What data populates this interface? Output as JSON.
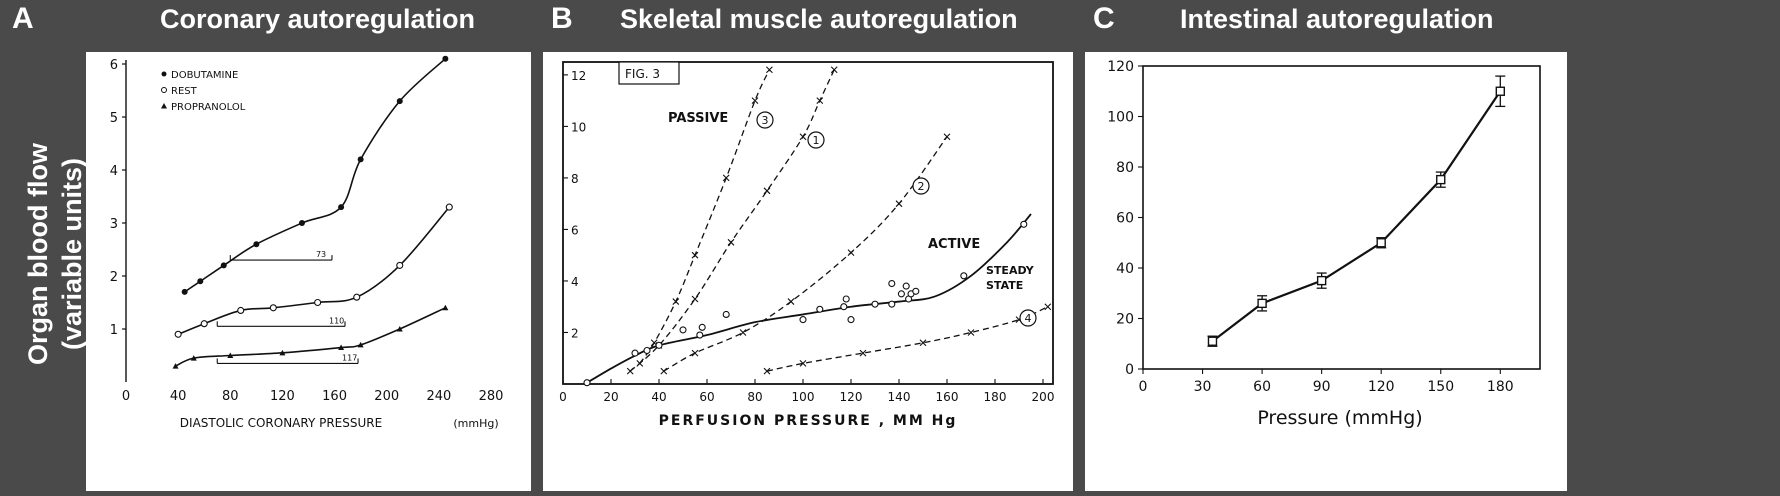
{
  "figure": {
    "shared_ylabel_line1": "Organ blood flow",
    "shared_ylabel_line2": "(variable units)"
  },
  "chart_data": [
    {
      "panel_letter": "A",
      "title": "Coronary autoregulation",
      "type": "line",
      "xlabel": "DIASTOLIC CORONARY PRESSURE",
      "xunit": "(mmHg)",
      "xlim": [
        0,
        280
      ],
      "ylim": [
        0,
        6
      ],
      "xticks": [
        0,
        40,
        80,
        120,
        160,
        200,
        240,
        280
      ],
      "yticks": [
        1,
        2,
        3,
        4,
        5,
        6
      ],
      "legend_position": "top-left",
      "series": [
        {
          "name": "DOBUTAMINE",
          "marker": "filled-circle",
          "points": [
            [
              45,
              1.7
            ],
            [
              57,
              1.9
            ],
            [
              75,
              2.2
            ],
            [
              100,
              2.6
            ],
            [
              135,
              3.0
            ],
            [
              165,
              3.3
            ],
            [
              180,
              4.2
            ],
            [
              210,
              5.3
            ],
            [
              245,
              6.1
            ]
          ]
        },
        {
          "name": "REST",
          "marker": "open-circle",
          "points": [
            [
              40,
              0.9
            ],
            [
              60,
              1.1
            ],
            [
              88,
              1.35
            ],
            [
              113,
              1.4
            ],
            [
              147,
              1.5
            ],
            [
              177,
              1.6
            ],
            [
              210,
              2.2
            ],
            [
              248,
              3.3
            ]
          ]
        },
        {
          "name": "PROPRANOLOL",
          "marker": "triangle",
          "points": [
            [
              38,
              0.3
            ],
            [
              52,
              0.45
            ],
            [
              80,
              0.5
            ],
            [
              120,
              0.55
            ],
            [
              165,
              0.65
            ],
            [
              180,
              0.7
            ],
            [
              210,
              1.0
            ],
            [
              245,
              1.4
            ]
          ]
        }
      ],
      "bracket_labels": [
        {
          "text": "73",
          "y": 2.3,
          "x_from": 80,
          "x_to": 158
        },
        {
          "text": "110",
          "y": 1.05,
          "x_from": 70,
          "x_to": 168
        },
        {
          "text": "117",
          "y": 0.35,
          "x_from": 70,
          "x_to": 178
        }
      ]
    },
    {
      "panel_letter": "B",
      "title": "Skeletal muscle autoregulation",
      "type": "line",
      "fig_label": "FIG. 3",
      "xlabel": "PERFUSION PRESSURE , MM Hg",
      "xlim": [
        0,
        200
      ],
      "ylim": [
        0,
        12.5
      ],
      "xticks": [
        0,
        20,
        40,
        60,
        80,
        100,
        120,
        140,
        160,
        180,
        200
      ],
      "yticks": [
        2,
        4,
        6,
        8,
        10,
        12
      ],
      "annotations": [
        "PASSIVE",
        "ACTIVE",
        "STEADY",
        "STATE"
      ],
      "series": [
        {
          "name": "3",
          "style": "dashed",
          "points": [
            [
              32,
              0.8
            ],
            [
              38,
              1.6
            ],
            [
              47,
              3.2
            ],
            [
              55,
              5.0
            ],
            [
              68,
              8.0
            ],
            [
              80,
              11.0
            ],
            [
              86,
              12.2
            ]
          ]
        },
        {
          "name": "1",
          "style": "dashed",
          "points": [
            [
              28,
              0.5
            ],
            [
              40,
              1.5
            ],
            [
              55,
              3.3
            ],
            [
              70,
              5.5
            ],
            [
              85,
              7.5
            ],
            [
              100,
              9.6
            ],
            [
              107,
              11.0
            ],
            [
              113,
              12.2
            ]
          ]
        },
        {
          "name": "2",
          "style": "dashed",
          "points": [
            [
              42,
              0.5
            ],
            [
              55,
              1.2
            ],
            [
              75,
              2.0
            ],
            [
              95,
              3.2
            ],
            [
              120,
              5.1
            ],
            [
              140,
              7.0
            ],
            [
              160,
              9.6
            ]
          ]
        },
        {
          "name": "4",
          "style": "dashed",
          "points": [
            [
              85,
              0.5
            ],
            [
              100,
              0.8
            ],
            [
              125,
              1.2
            ],
            [
              150,
              1.6
            ],
            [
              170,
              2.0
            ],
            [
              190,
              2.5
            ],
            [
              202,
              3.0
            ]
          ]
        },
        {
          "name": "ACTIVE",
          "style": "solid",
          "points": [
            [
              10,
              0.05
            ],
            [
              20,
              0.6
            ],
            [
              30,
              1.1
            ],
            [
              40,
              1.5
            ],
            [
              60,
              1.9
            ],
            [
              80,
              2.4
            ],
            [
              100,
              2.7
            ],
            [
              120,
              3.0
            ],
            [
              140,
              3.2
            ],
            [
              155,
              3.4
            ],
            [
              170,
              4.2
            ],
            [
              185,
              5.5
            ],
            [
              195,
              6.6
            ]
          ]
        }
      ],
      "scatter_points": [
        [
          10,
          0.05
        ],
        [
          30,
          1.2
        ],
        [
          35,
          1.3
        ],
        [
          40,
          1.5
        ],
        [
          50,
          2.1
        ],
        [
          57,
          1.9
        ],
        [
          58,
          2.2
        ],
        [
          68,
          2.7
        ],
        [
          100,
          2.5
        ],
        [
          107,
          2.9
        ],
        [
          117,
          3.0
        ],
        [
          118,
          3.3
        ],
        [
          120,
          2.5
        ],
        [
          130,
          3.1
        ],
        [
          137,
          3.9
        ],
        [
          137,
          3.1
        ],
        [
          141,
          3.5
        ],
        [
          143,
          3.8
        ],
        [
          144,
          3.3
        ],
        [
          145,
          3.5
        ],
        [
          147,
          3.6
        ],
        [
          167,
          4.2
        ],
        [
          192,
          6.2
        ]
      ]
    },
    {
      "panel_letter": "C",
      "title": "Intestinal autoregulation",
      "type": "line",
      "xlabel": "Pressure (mmHg)",
      "xlim": [
        0,
        200
      ],
      "ylim": [
        0,
        120
      ],
      "xticks": [
        0,
        30,
        60,
        90,
        120,
        150,
        180
      ],
      "yticks": [
        0,
        20,
        40,
        60,
        80,
        100,
        120
      ],
      "series": [
        {
          "name": "",
          "marker": "open-square",
          "points": [
            [
              35,
              11
            ],
            [
              60,
              26
            ],
            [
              90,
              35
            ],
            [
              120,
              50
            ],
            [
              150,
              75
            ],
            [
              180,
              110
            ]
          ],
          "errors": [
            2,
            3,
            3,
            2,
            3,
            6
          ]
        }
      ]
    }
  ]
}
